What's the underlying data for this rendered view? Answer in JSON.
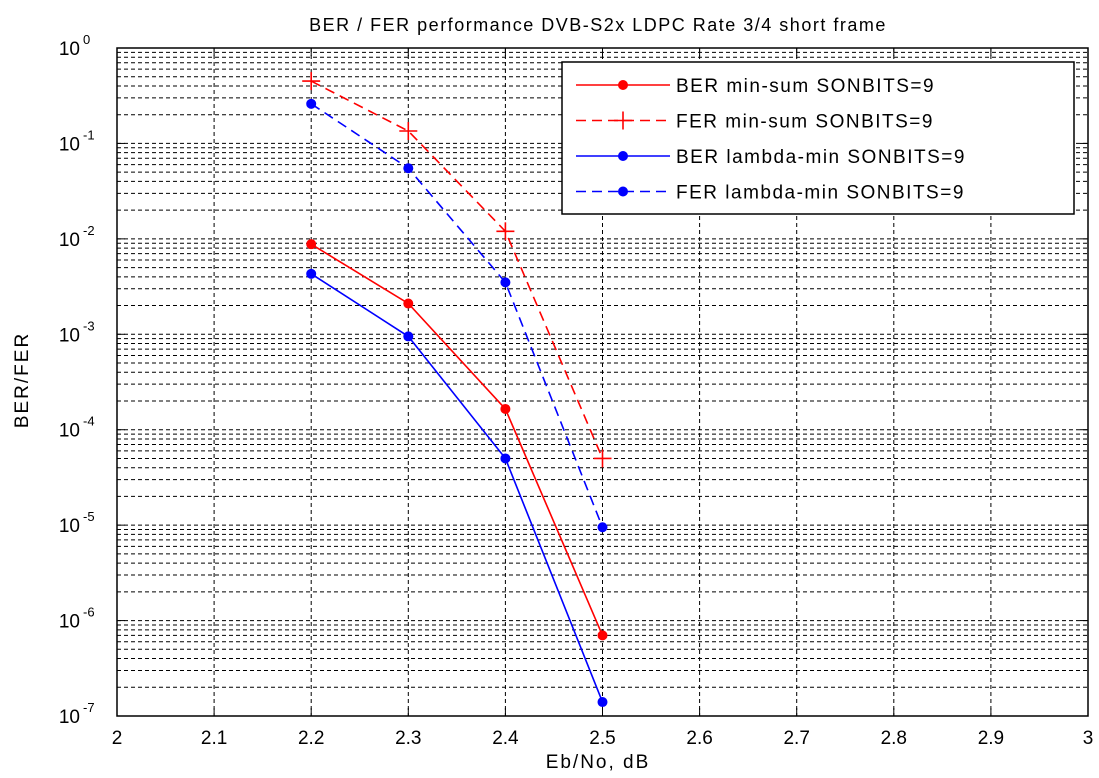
{
  "chart_data": {
    "type": "line",
    "title": "BER / FER performance  DVB-S2x LDPC Rate 3/4 short frame",
    "xlabel": "Eb/No, dB",
    "ylabel": "BER/FER",
    "xlim": [
      2,
      3
    ],
    "ylim": [
      1e-07,
      1
    ],
    "yscale": "log",
    "grid": true,
    "legend_position": "top-right",
    "x_ticks": [
      "2",
      "2.1",
      "2.2",
      "2.3",
      "2.4",
      "2.5",
      "2.6",
      "2.7",
      "2.8",
      "2.9",
      "3"
    ],
    "y_ticks": [
      {
        "base": "10",
        "exp": "0",
        "value": 1
      },
      {
        "base": "10",
        "exp": "-1",
        "value": 0.1
      },
      {
        "base": "10",
        "exp": "-2",
        "value": 0.01
      },
      {
        "base": "10",
        "exp": "-3",
        "value": 0.001
      },
      {
        "base": "10",
        "exp": "-4",
        "value": 0.0001
      },
      {
        "base": "10",
        "exp": "-5",
        "value": 1e-05
      },
      {
        "base": "10",
        "exp": "-6",
        "value": 1e-06
      },
      {
        "base": "10",
        "exp": "-7",
        "value": 1e-07
      }
    ],
    "series": [
      {
        "name": "BER min-sum SONBITS=9",
        "color": "#ff0000",
        "dash": "solid",
        "marker": "dot",
        "x": [
          2.2,
          2.3,
          2.4,
          2.5
        ],
        "y": [
          0.0088,
          0.0021,
          0.000165,
          7e-07
        ]
      },
      {
        "name": "FER min-sum SONBITS=9",
        "color": "#ff0000",
        "dash": "dashed",
        "marker": "plus",
        "x": [
          2.2,
          2.3,
          2.4,
          2.5
        ],
        "y": [
          0.45,
          0.135,
          0.012,
          5e-05
        ]
      },
      {
        "name": "BER lambda-min SONBITS=9",
        "color": "#0000ff",
        "dash": "solid",
        "marker": "dot",
        "x": [
          2.2,
          2.3,
          2.4,
          2.5
        ],
        "y": [
          0.0043,
          0.00095,
          5e-05,
          1.4e-07
        ]
      },
      {
        "name": "FER lambda-min SONBITS=9",
        "color": "#0000ff",
        "dash": "dashed",
        "marker": "dot",
        "x": [
          2.2,
          2.3,
          2.4,
          2.5
        ],
        "y": [
          0.26,
          0.055,
          0.0035,
          9.5e-06
        ]
      }
    ]
  }
}
